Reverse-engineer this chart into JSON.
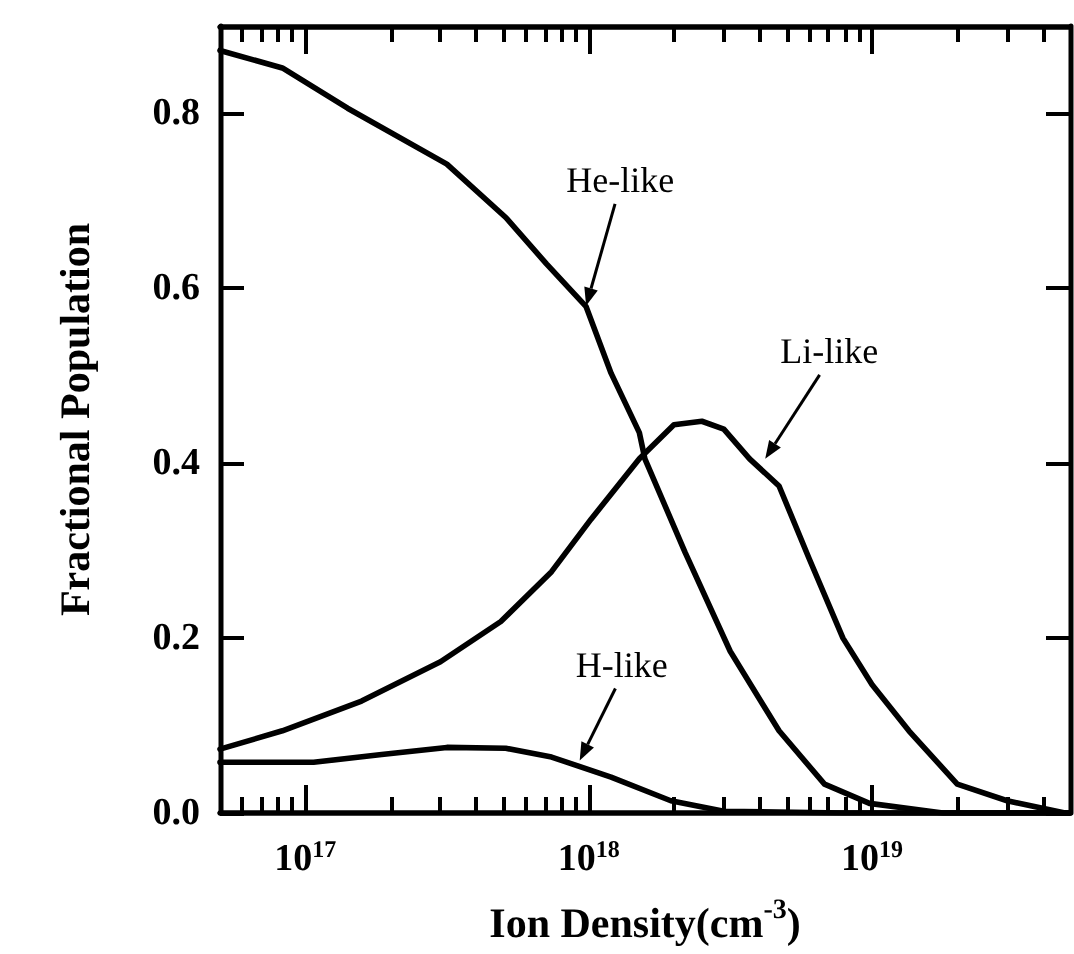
{
  "chart_data": {
    "type": "line",
    "xlabel": "Ion Density(cm$^{-3}$)",
    "ylabel": "Fractional Population",
    "log": "x",
    "grid": false,
    "marker": "none",
    "line_style": "solid",
    "xlim": [
      5e+16,
      5e+19
    ],
    "ylim": [
      0,
      0.9
    ],
    "xticks": [
      {
        "value": 6e+16,
        "label": null
      },
      {
        "value": 7e+16,
        "label": null
      },
      {
        "value": 8e+16,
        "label": null
      },
      {
        "value": 9e+16,
        "label": null
      },
      {
        "value": 1e+17,
        "label": "10$^{17}$"
      },
      {
        "value": 2e+17,
        "label": null
      },
      {
        "value": 3e+17,
        "label": null
      },
      {
        "value": 4e+17,
        "label": null
      },
      {
        "value": 5e+17,
        "label": null
      },
      {
        "value": 6e+17,
        "label": null
      },
      {
        "value": 7e+17,
        "label": null
      },
      {
        "value": 8e+17,
        "label": null
      },
      {
        "value": 9e+17,
        "label": null
      },
      {
        "value": 1e+18,
        "label": "10$^{18}$"
      },
      {
        "value": 2e+18,
        "label": null
      },
      {
        "value": 3e+18,
        "label": null
      },
      {
        "value": 4e+18,
        "label": null
      },
      {
        "value": 5e+18,
        "label": null
      },
      {
        "value": 6e+18,
        "label": null
      },
      {
        "value": 7e+18,
        "label": null
      },
      {
        "value": 8e+18,
        "label": null
      },
      {
        "value": 9e+18,
        "label": null
      },
      {
        "value": 1e+19,
        "label": "10$^{19}$"
      },
      {
        "value": 2e+19,
        "label": null
      },
      {
        "value": 3e+19,
        "label": null
      },
      {
        "value": 4e+19,
        "label": null
      }
    ],
    "yticks": [
      {
        "value": 0,
        "label": "0.0"
      },
      {
        "value": 0.2,
        "label": "0.2"
      },
      {
        "value": 0.4,
        "label": "0.4"
      },
      {
        "value": 0.6,
        "label": "0.6"
      },
      {
        "value": 0.8,
        "label": "0.8"
      }
    ],
    "series": [
      {
        "color": "#000000",
        "x": [
          5e+16,
          8.3e+16,
          1.41e+17,
          3.16e+17,
          5.1e+17,
          7.1e+17,
          9.8e+17,
          1.2e+18,
          1.51e+18,
          1.58e+18,
          2.19e+18,
          3.16e+18,
          4.7e+18,
          6.8e+18,
          9.8e+18,
          1.78e+19,
          5e+19
        ],
        "values": [
          0.872,
          0.852,
          0.806,
          0.742,
          0.681,
          0.628,
          0.579,
          0.503,
          0.435,
          0.405,
          0.298,
          0.185,
          0.094,
          0.033,
          0.011,
          0.0,
          0.0
        ]
      },
      {
        "color": "#000000",
        "x": [
          5e+16,
          8.3e+16,
          1.58e+17,
          3e+17,
          4.9e+17,
          7.4e+17,
          1.02e+18,
          1.51e+18,
          2e+18,
          2.51e+18,
          3e+18,
          3.7e+18,
          4.7e+18,
          6e+18,
          7.9e+18,
          1e+19,
          1.35e+19,
          2e+19,
          3e+19,
          4.8e+19
        ],
        "values": [
          0.073,
          0.094,
          0.128,
          0.173,
          0.219,
          0.276,
          0.336,
          0.405,
          0.444,
          0.448,
          0.439,
          0.405,
          0.374,
          0.291,
          0.2,
          0.147,
          0.094,
          0.033,
          0.014,
          0.0
        ]
      },
      {
        "color": "#000000",
        "x": [
          5e+16,
          1.07e+17,
          1.86e+17,
          3.16e+17,
          5.1e+17,
          7.4e+17,
          1.2e+18,
          1.95e+18,
          3e+18,
          7.9e+18,
          5e+19
        ],
        "values": [
          0.058,
          0.058,
          0.067,
          0.075,
          0.074,
          0.064,
          0.041,
          0.014,
          0.002,
          0.0,
          0.0
        ]
      }
    ],
    "annotations": [
      {
        "text": "He-like",
        "x": 9.8e+17,
        "y": 0.58
      },
      {
        "text": "Li-like",
        "x": 4.2e+18,
        "y": 0.405
      },
      {
        "text": "H-like",
        "x": 9.3e+17,
        "y": 0.06
      }
    ]
  }
}
